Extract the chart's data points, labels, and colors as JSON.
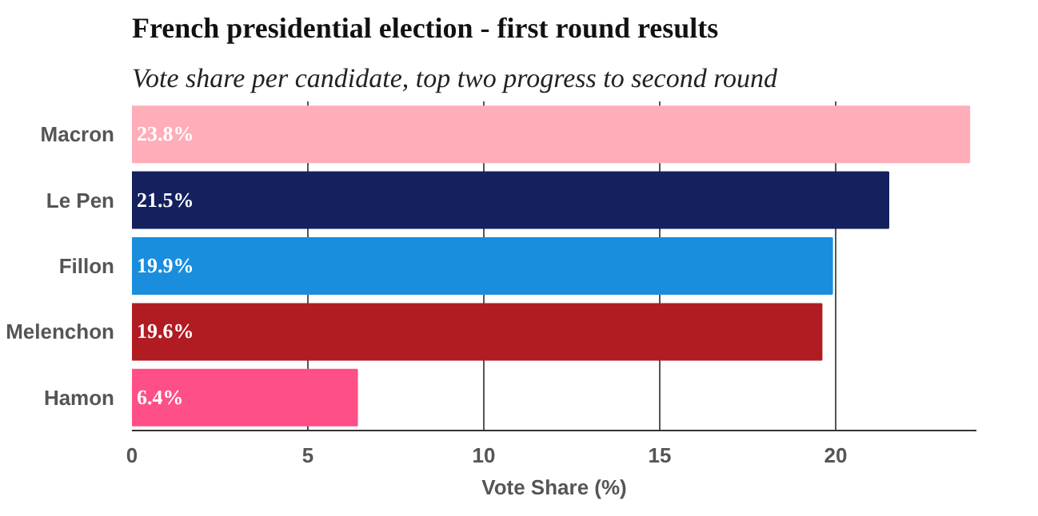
{
  "chart_data": {
    "type": "bar",
    "orientation": "horizontal",
    "title": "French presidential election - first round results",
    "subtitle": "Vote share per candidate, top two progress to second round",
    "xlabel": "Vote Share (%)",
    "categories": [
      "Macron",
      "Le Pen",
      "Fillon",
      "Melenchon",
      "Hamon"
    ],
    "values": [
      23.8,
      21.5,
      19.9,
      19.6,
      6.4
    ],
    "value_labels": [
      "23.8%",
      "21.5%",
      "19.9%",
      "19.6%",
      "6.4%"
    ],
    "colors": [
      "#ffadb9",
      "#14215e",
      "#1a8ddd",
      "#b01c22",
      "#ff4f87"
    ],
    "xlim": [
      0,
      24
    ],
    "xticks": [
      0,
      5,
      10,
      15,
      20
    ],
    "grid": "x"
  }
}
